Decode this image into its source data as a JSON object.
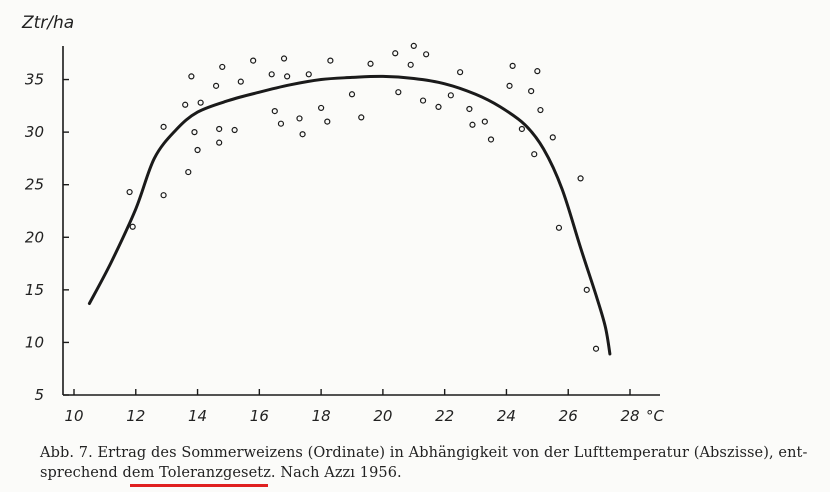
{
  "chart_data": {
    "type": "scatter",
    "title": "",
    "ylabel": "Ztr/ha",
    "xlabel": "°C",
    "xlim": [
      10,
      28
    ],
    "ylim": [
      5,
      38
    ],
    "x_ticks": [
      10,
      12,
      14,
      16,
      18,
      20,
      22,
      24,
      26,
      28
    ],
    "y_ticks": [
      5,
      10,
      15,
      20,
      25,
      30,
      35
    ],
    "grid": false,
    "series": [
      {
        "kind": "points",
        "x": [
          11.8,
          11.9,
          12.9,
          12.9,
          13.6,
          13.7,
          13.8,
          13.9,
          14.0,
          14.1,
          14.6,
          14.7,
          14.7,
          14.8,
          15.2,
          15.4,
          15.8,
          16.4,
          16.5,
          16.7,
          16.8,
          16.9,
          17.3,
          17.4,
          17.6,
          18.0,
          18.2,
          18.3,
          19.0,
          19.3,
          19.6,
          20.4,
          20.5,
          20.9,
          21.0,
          21.3,
          21.4,
          21.8,
          22.2,
          22.5,
          22.8,
          22.9,
          23.3,
          23.5,
          24.1,
          24.2,
          24.5,
          24.8,
          24.9,
          25.0,
          25.1,
          25.5,
          25.7,
          26.4,
          26.6,
          26.9
        ],
        "y": [
          24.3,
          21.0,
          30.5,
          24.0,
          32.6,
          26.2,
          35.3,
          30.0,
          28.3,
          32.8,
          34.4,
          30.3,
          29.0,
          36.2,
          30.2,
          34.8,
          36.8,
          35.5,
          32.0,
          30.8,
          37.0,
          35.3,
          31.3,
          29.8,
          35.5,
          32.3,
          31.0,
          36.8,
          33.6,
          31.4,
          36.5,
          37.5,
          33.8,
          36.4,
          38.2,
          33.0,
          37.4,
          32.4,
          33.5,
          35.7,
          32.2,
          30.7,
          31.0,
          29.3,
          34.4,
          36.3,
          30.3,
          33.9,
          27.9,
          35.8,
          32.1,
          29.5,
          20.9,
          25.6,
          15.0,
          9.4
        ]
      },
      {
        "kind": "curve",
        "x": [
          10.5,
          11.2,
          12.0,
          12.6,
          13.3,
          14.0,
          15.0,
          16.0,
          17.0,
          18.0,
          19.0,
          20.0,
          21.0,
          22.0,
          23.0,
          23.8,
          24.6,
          25.2,
          25.8,
          26.4,
          26.9,
          27.2,
          27.35
        ],
        "y": [
          13.7,
          17.6,
          22.7,
          27.5,
          30.2,
          31.9,
          33.0,
          33.8,
          34.5,
          35.0,
          35.2,
          35.3,
          35.1,
          34.6,
          33.6,
          32.4,
          30.7,
          28.4,
          24.6,
          19.0,
          14.5,
          11.5,
          8.9
        ]
      }
    ]
  },
  "caption": {
    "line1": "Abb. 7. Ertrag des Sommerweizens (Ordinate) in Abhängigkeit von der Lufttemperatur (Abszisse), ent-",
    "line2": "sprechend dem Toleranzgesetz. Nach Azzı 1956."
  },
  "colors": {
    "ink": "#1a1a1a",
    "paper": "#fbfbf9",
    "highlight": "#e02020"
  }
}
